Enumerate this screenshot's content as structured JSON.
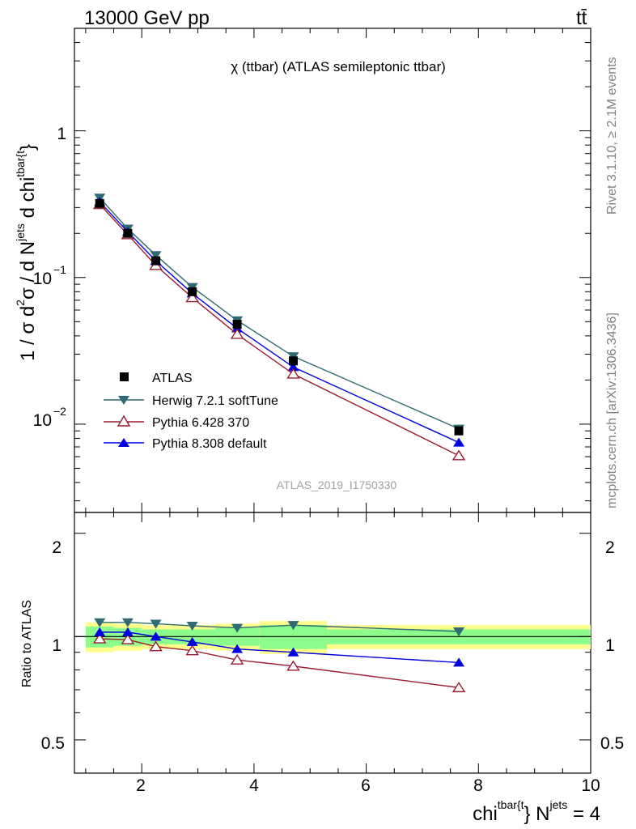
{
  "header": {
    "left": "13000 GeV pp",
    "right": "tt̄"
  },
  "main_title": "χ (ttbar) (ATLAS semileptonic ttbar)",
  "analysis_id": "ATLAS_2019_I1750330",
  "side_text": {
    "rivet": "Rivet 3.1.10, ≥ 2.1M events",
    "mcplots": "mcplots.cern.ch [arXiv:1306.3436]"
  },
  "axes": {
    "main_ylabel_prefix": "1 / σ d",
    "main_ylabel_sup1": "2",
    "main_ylabel_mid": "σ / d N",
    "main_ylabel_sup2": "jets",
    "main_ylabel_mid2": " d chi",
    "main_ylabel_sup3": "tbar{t",
    "main_ylabel_end": "}",
    "ratio_ylabel": "Ratio to ATLAS",
    "xlabel_base": "chi",
    "xlabel_sup1": "tbar{t",
    "xlabel_mid": "} N",
    "xlabel_sup2": "jets",
    "xlabel_end": " = 4",
    "main_yticks": [
      "1",
      "10",
      "−1",
      "10",
      "−2"
    ],
    "ratio_yticks": [
      "2",
      "1",
      "0.5"
    ],
    "xticks": [
      "2",
      "4",
      "6",
      "8",
      "10"
    ]
  },
  "colors": {
    "atlas": "#000000",
    "herwig": "#2e6b72",
    "pythia6": "#9b1b30",
    "pythia8": "#0000e0",
    "band_inner": "#8cfd8c",
    "band_outer": "#fdfd8c"
  },
  "chart_data": [
    {
      "type": "line",
      "panel": "main",
      "title": "χ (ttbar) (ATLAS semileptonic ttbar)",
      "y_scale": "log",
      "xlim": [
        0.8,
        10
      ],
      "ylim": [
        0.0025,
        5
      ],
      "legend": "center-left",
      "x": [
        1.25,
        1.75,
        2.25,
        2.9,
        3.7,
        4.7,
        7.65
      ],
      "series": [
        {
          "name": "ATLAS",
          "marker": "square",
          "values": [
            0.32,
            0.2,
            0.13,
            0.08,
            0.048,
            0.027,
            0.009
          ]
        },
        {
          "name": "Herwig 7.2.1 softTune",
          "marker": "triangle-down",
          "values": [
            0.35,
            0.215,
            0.142,
            0.086,
            0.051,
            0.029,
            0.0093
          ]
        },
        {
          "name": "Pythia 6.428 370",
          "marker": "triangle-up-open",
          "values": [
            0.315,
            0.196,
            0.121,
            0.073,
            0.041,
            0.022,
            0.0061
          ]
        },
        {
          "name": "Pythia 8.308 default",
          "marker": "triangle-up",
          "values": [
            0.328,
            0.205,
            0.13,
            0.078,
            0.045,
            0.0245,
            0.0075
          ]
        }
      ]
    },
    {
      "type": "line",
      "panel": "ratio",
      "y_scale": "log",
      "xlim": [
        0.8,
        10
      ],
      "ylim": [
        0.4,
        2.3
      ],
      "x": [
        1.25,
        1.75,
        2.25,
        2.9,
        3.7,
        4.7,
        7.65
      ],
      "series": [
        {
          "name": "Herwig 7.2.1 softTune",
          "values": [
            1.1,
            1.1,
            1.09,
            1.075,
            1.06,
            1.08,
            1.035
          ]
        },
        {
          "name": "Pythia 6.428 370",
          "values": [
            0.985,
            0.98,
            0.935,
            0.91,
            0.855,
            0.82,
            0.71
          ]
        },
        {
          "name": "Pythia 8.308 default",
          "values": [
            1.03,
            1.03,
            1.0,
            0.965,
            0.92,
            0.9,
            0.84
          ]
        }
      ],
      "bands": {
        "edges": [
          1.0,
          1.5,
          2.0,
          2.5,
          3.3,
          4.1,
          5.3,
          10.0
        ],
        "inner": [
          0.07,
          0.06,
          0.05,
          0.05,
          0.06,
          0.08,
          0.05
        ],
        "outer": [
          0.1,
          0.09,
          0.08,
          0.08,
          0.09,
          0.11,
          0.08
        ]
      }
    }
  ]
}
